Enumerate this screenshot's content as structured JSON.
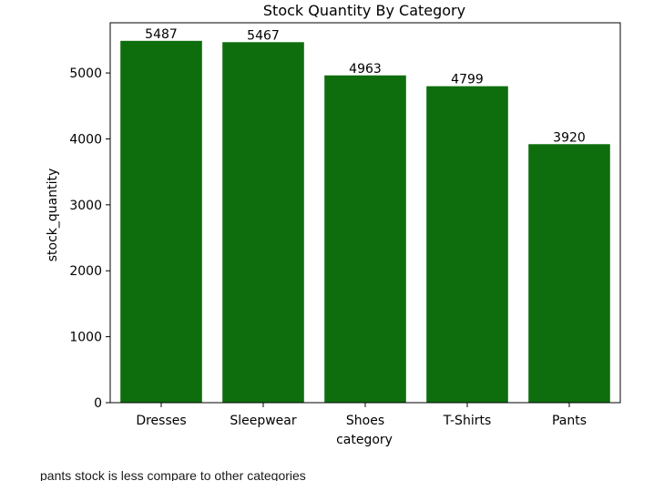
{
  "chart_data": {
    "type": "bar",
    "title": "Stock Quantity By Category",
    "xlabel": "category",
    "ylabel": "stock_quantity",
    "categories": [
      "Dresses",
      "Sleepwear",
      "Shoes",
      "T-Shirts",
      "Pants"
    ],
    "values": [
      5487,
      5467,
      4963,
      4799,
      3920
    ],
    "data_labels": [
      "5487",
      "5467",
      "4963",
      "4799",
      "3920"
    ],
    "yticks": [
      0,
      1000,
      2000,
      3000,
      4000,
      5000
    ],
    "ylim": [
      0,
      5761
    ],
    "bar_color": "#0e6e0e",
    "grid": false,
    "legend": "none"
  },
  "notes": {
    "caption": "pants stock is less compare to other categories"
  }
}
